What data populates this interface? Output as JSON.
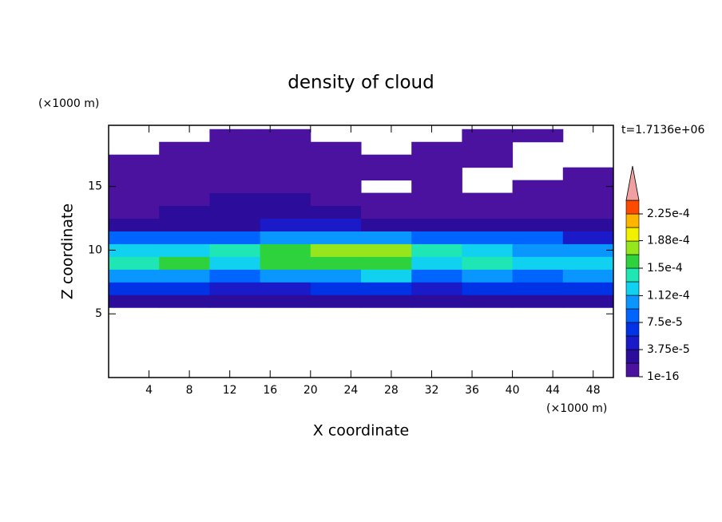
{
  "chart_data": {
    "type": "contour",
    "title": "density of cloud",
    "time_label": "t=1.7136e+06",
    "x_label": "X coordinate",
    "y_label": "Z coordinate",
    "x_unit": "(×1000 m)",
    "y_unit": "(×1000 m)",
    "xlim": [
      0,
      50
    ],
    "ylim": [
      0,
      19.8
    ],
    "xticks": [
      4,
      8,
      12,
      16,
      20,
      24,
      28,
      32,
      36,
      40,
      44,
      48
    ],
    "yticks": [
      5,
      10,
      15
    ],
    "x": [
      2.5,
      7.5,
      12.5,
      17.5,
      22.5,
      27.5,
      32.5,
      37.5,
      42.5,
      47.5
    ],
    "y": [
      6,
      7,
      8,
      9,
      10,
      11,
      12,
      13,
      14,
      15,
      16,
      17,
      18,
      19
    ],
    "z": [
      [
        3e-05,
        3e-05,
        3e-05,
        2e-05,
        2e-05,
        2e-05,
        2e-05,
        3e-05,
        3e-05,
        3e-05
      ],
      [
        6e-05,
        6e-05,
        5e-05,
        5e-05,
        6e-05,
        6e-05,
        5e-05,
        6e-05,
        6e-05,
        6e-05
      ],
      [
        0.00011,
        0.0001,
        9e-05,
        0.0001,
        0.00011,
        0.00012,
        9e-05,
        0.0001,
        9e-05,
        0.0001
      ],
      [
        0.00014,
        0.00015,
        0.00013,
        0.00015,
        0.00016,
        0.000165,
        0.00013,
        0.00014,
        0.00012,
        0.00013
      ],
      [
        0.00013,
        0.00013,
        0.000135,
        0.00016,
        0.000175,
        0.000175,
        0.00014,
        0.00013,
        0.00011,
        0.0001
      ],
      [
        8e-05,
        9e-05,
        9e-05,
        0.0001,
        0.00011,
        0.0001,
        8e-05,
        9e-05,
        8e-05,
        5e-05
      ],
      [
        3e-05,
        3e-05,
        3e-05,
        4e-05,
        4e-05,
        3e-05,
        3e-05,
        3e-05,
        2e-05,
        2e-05
      ],
      [
        1e-05,
        2e-05,
        2.5e-05,
        2.5e-05,
        2e-05,
        1.5e-05,
        1e-05,
        1e-05,
        1e-05,
        1e-05
      ],
      [
        5e-06,
        1.5e-05,
        2e-05,
        2e-05,
        1.5e-05,
        5e-06,
        5e-06,
        5e-06,
        5e-06,
        5e-06
      ],
      [
        5e-06,
        5e-06,
        1e-05,
        1.5e-05,
        1e-05,
        null,
        5e-06,
        null,
        5e-06,
        5e-06
      ],
      [
        5e-06,
        5e-06,
        5e-06,
        1e-05,
        5e-06,
        5e-06,
        5e-06,
        null,
        null,
        5e-06
      ],
      [
        5e-06,
        5e-06,
        5e-06,
        5e-06,
        5e-06,
        5e-06,
        5e-06,
        5e-06,
        null,
        null
      ],
      [
        null,
        5e-06,
        5e-06,
        5e-06,
        5e-06,
        null,
        5e-06,
        5e-06,
        null,
        null
      ],
      [
        null,
        null,
        5e-06,
        5e-06,
        null,
        null,
        null,
        5e-06,
        5e-06,
        null
      ]
    ],
    "colorbar": {
      "levels": [
        1e-16,
        1.875e-05,
        3.75e-05,
        5.625e-05,
        7.5e-05,
        9.375e-05,
        0.0001125,
        0.00013125,
        0.00015,
        0.00016875,
        0.0001875,
        0.00020625,
        0.000225,
        0.00024375
      ],
      "colors": [
        "#4a129e",
        "#2c0c9a",
        "#1a1ac8",
        "#0032e6",
        "#0064ff",
        "#0a96ff",
        "#10d2f0",
        "#1ee6b4",
        "#2ed23c",
        "#96e61e",
        "#f0f000",
        "#ffb400",
        "#ff4b00"
      ],
      "over_color": "#f0a0a0",
      "ticks": [
        1e-16,
        {
          "value": 3.75e-05,
          "label": "3.75e-5"
        },
        {
          "value": 7.5e-05,
          "label": "7.5e-5"
        },
        {
          "value": 0.000112,
          "label": "1.12e-4"
        },
        {
          "value": 0.00015,
          "label": "1.5e-4"
        },
        {
          "value": 0.000188,
          "label": "1.88e-4"
        },
        {
          "value": 0.000225,
          "label": "2.25e-4"
        }
      ]
    }
  }
}
